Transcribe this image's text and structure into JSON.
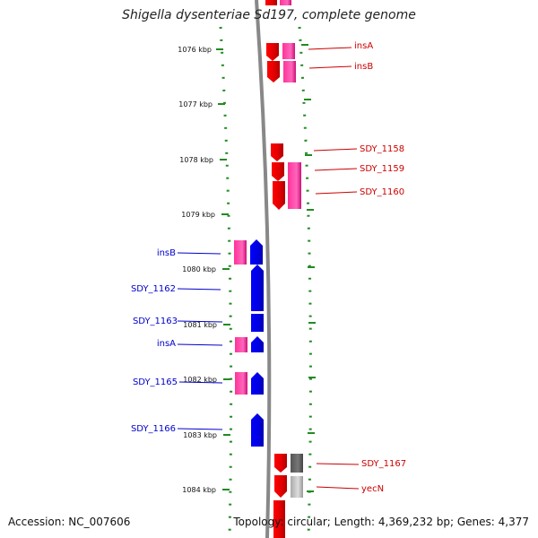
{
  "title": "Shigella dysenteriae Sd197, complete genome",
  "footer": {
    "accession": "Accession: NC_007606",
    "stats": "Topology: circular; Length: 4,369,232 bp; Genes: 4,377"
  },
  "colors": {
    "forward_gene": "#ff0000",
    "reverse_gene": "#0000ff",
    "mobile_element": "#ff3399",
    "forward_label": "#cc0000",
    "reverse_label": "#0000cc",
    "tick": "#228b22",
    "backbone": "#888888"
  },
  "ruler": {
    "ticks": [
      "1076 kbp",
      "1077 kbp",
      "1078 kbp",
      "1079 kbp",
      "1080 kbp",
      "1081 kbp",
      "1082 kbp",
      "1083 kbp",
      "1084 kbp"
    ]
  },
  "forward_genes": [
    {
      "label": "insA"
    },
    {
      "label": "insB"
    },
    {
      "label": "SDY_1158"
    },
    {
      "label": "SDY_1159"
    },
    {
      "label": "SDY_1160"
    },
    {
      "label": "SDY_1167"
    },
    {
      "label": "yecN"
    }
  ],
  "reverse_genes": [
    {
      "label": "insB"
    },
    {
      "label": "SDY_1162"
    },
    {
      "label": "SDY_1163"
    },
    {
      "label": "insA"
    },
    {
      "label": "SDY_1165"
    },
    {
      "label": "SDY_1166"
    }
  ]
}
